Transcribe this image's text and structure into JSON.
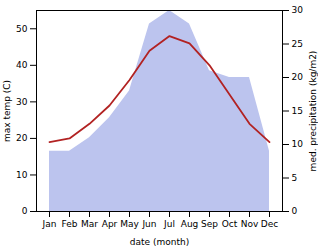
{
  "chart_data": {
    "type": "line",
    "categories": [
      "Jan",
      "Feb",
      "Mar",
      "Apr",
      "May",
      "Jun",
      "Jul",
      "Aug",
      "Sep",
      "Oct",
      "Nov",
      "Dec"
    ],
    "xlabel": "date (month)",
    "ylabel": "max temp (C)",
    "y2label": "med. precipitation (kg/m2)",
    "series": [
      {
        "type": "area",
        "axis": "y2",
        "color": "#bcc4ee",
        "values": [
          9,
          9,
          11,
          14,
          18,
          28,
          30,
          28,
          21,
          20,
          20,
          9
        ]
      },
      {
        "type": "line",
        "color": "#b22222",
        "values": [
          19,
          20,
          24,
          29,
          36,
          44,
          48,
          46,
          40,
          32,
          24,
          19
        ]
      }
    ],
    "ylim": [
      0,
      55
    ],
    "yticks": [
      0,
      10,
      20,
      30,
      40,
      50
    ],
    "y2lim": [
      0,
      30
    ],
    "y2ticks": [
      0,
      5,
      10,
      15,
      20,
      25,
      30
    ]
  }
}
